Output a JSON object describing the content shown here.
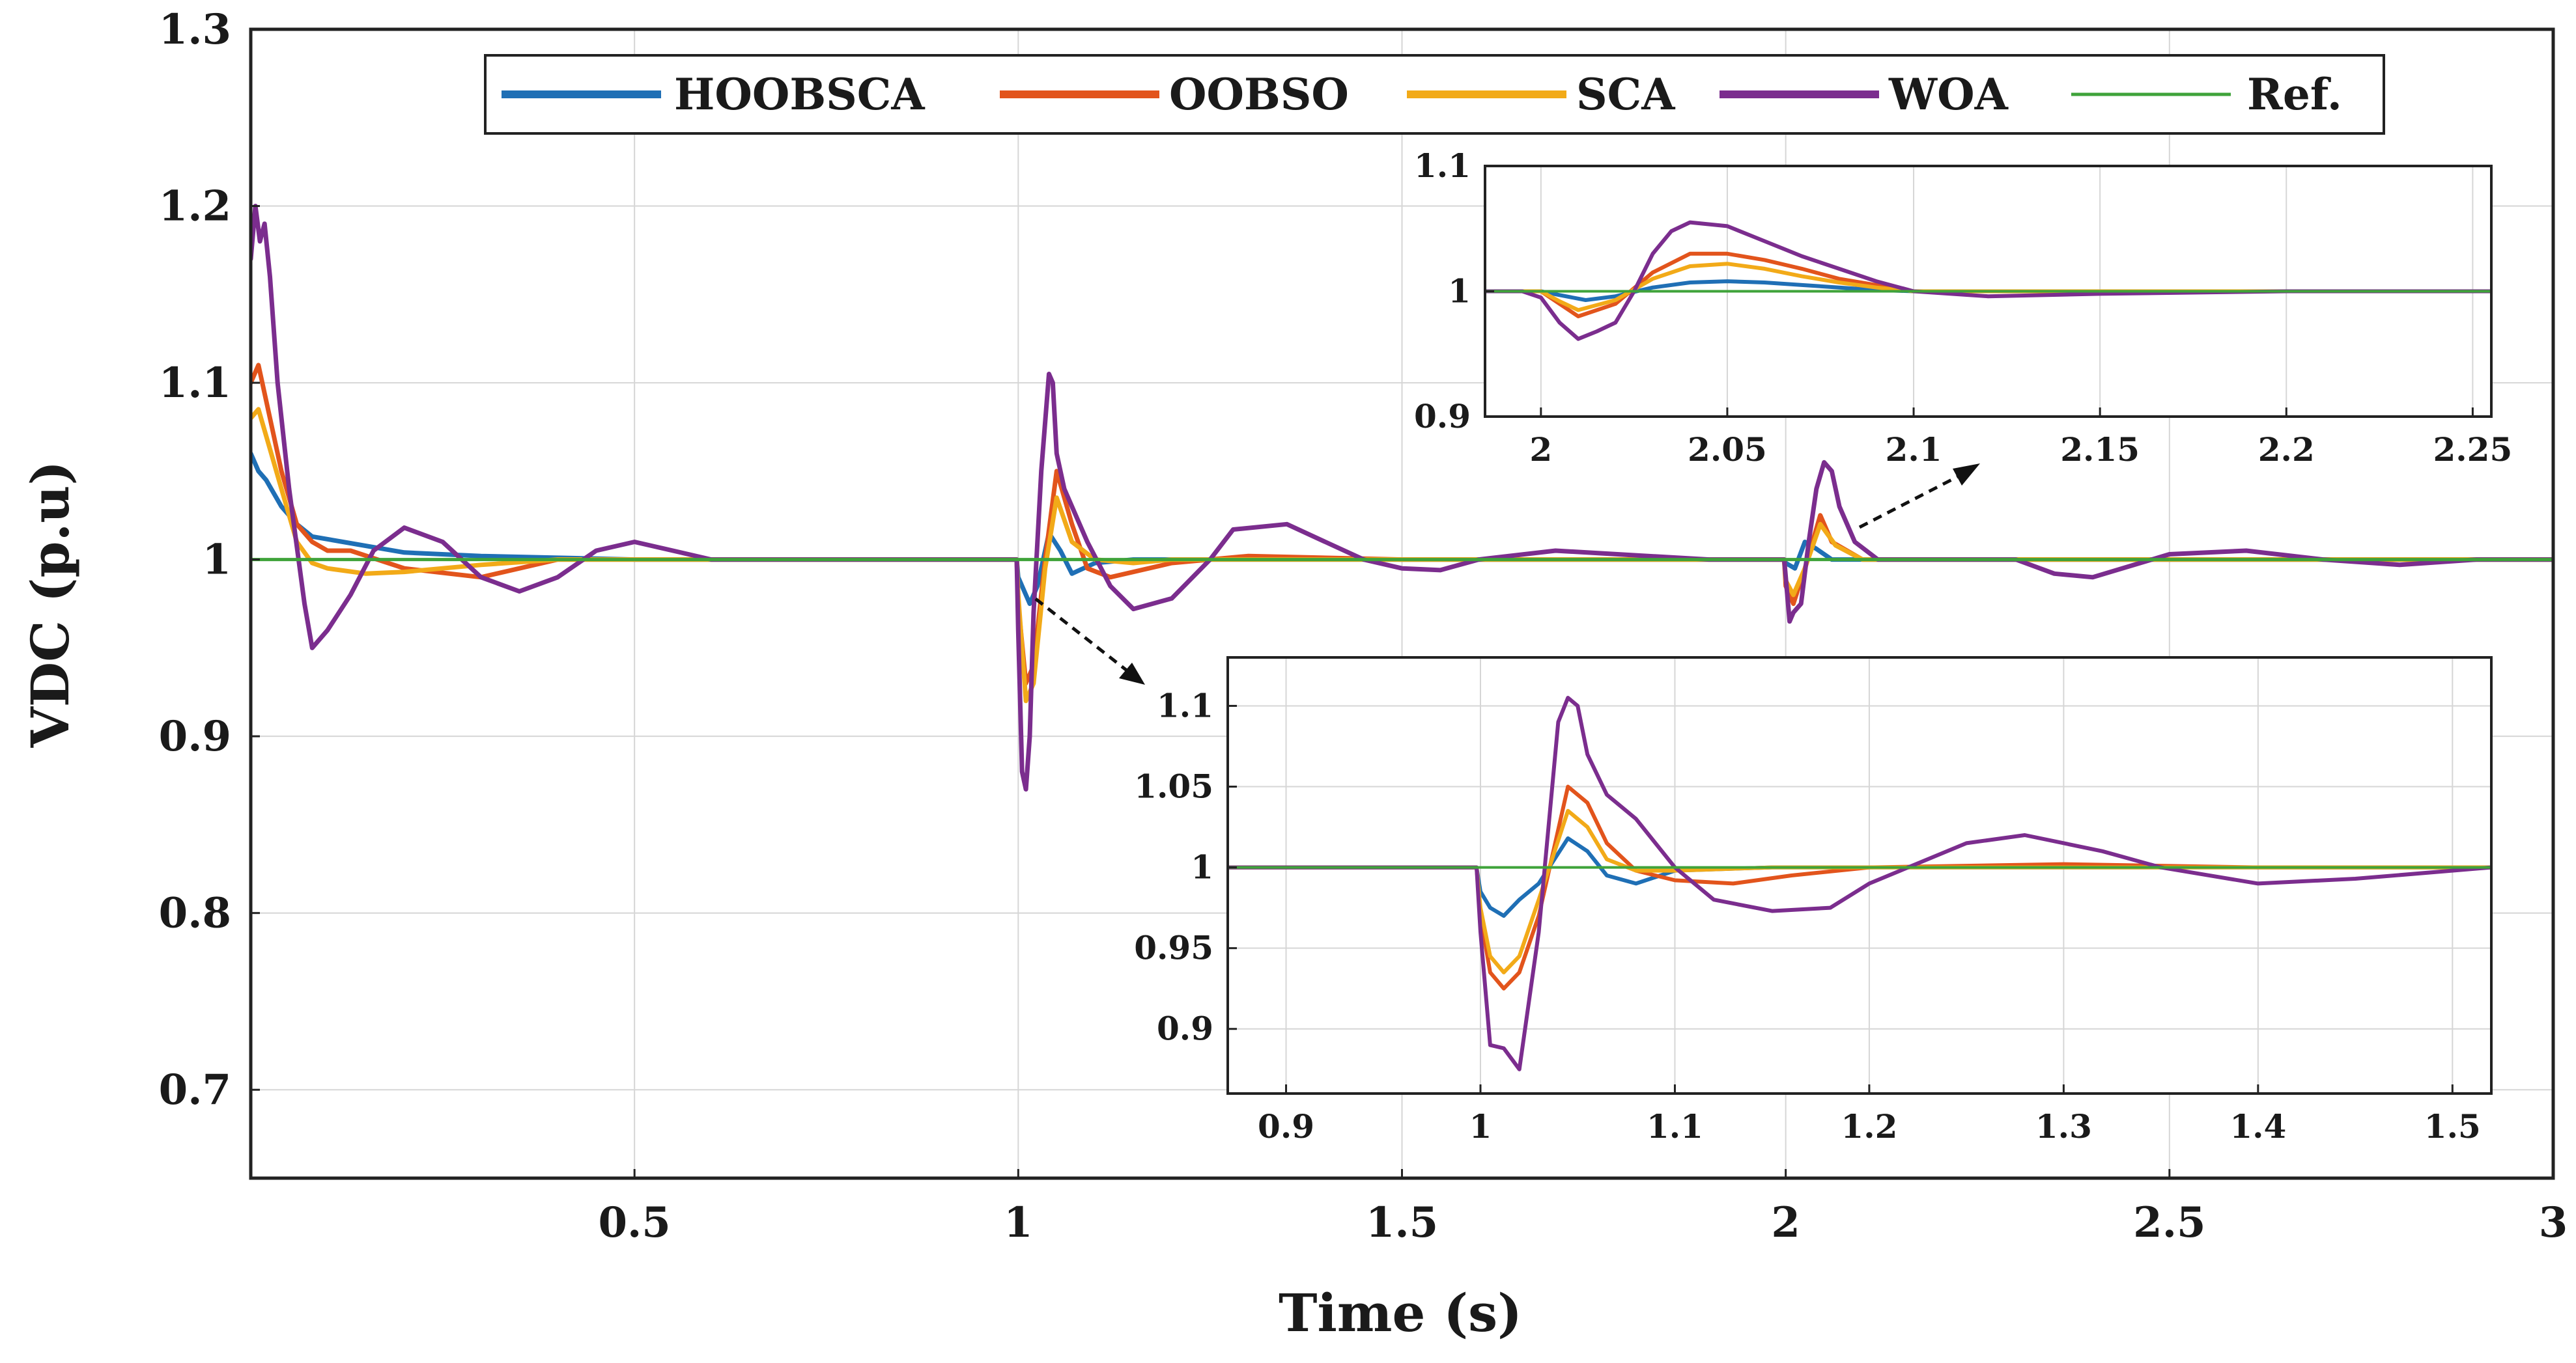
{
  "chart_data": [
    {
      "id": "main",
      "type": "line",
      "title": "",
      "xlabel": "Time (s)",
      "ylabel": "VDC (p.u)",
      "xlim": [
        0,
        3
      ],
      "ylim": [
        0.65,
        1.3
      ],
      "grid": true,
      "legend_position": "top",
      "xticks": [
        0.5,
        1,
        1.5,
        2,
        2.5,
        3
      ],
      "xtick_labels": [
        "0.5",
        "1",
        "1.5",
        "2",
        "2.5",
        "3"
      ],
      "yticks": [
        0.7,
        0.8,
        0.9,
        1,
        1.1,
        1.2,
        1.3
      ],
      "ytick_labels": [
        "0.7",
        "0.8",
        "0.9",
        "1",
        "1.1",
        "1.2",
        "1.3"
      ],
      "series": [
        {
          "name": "HOOBSCA",
          "color": "#1f6fb5",
          "x": [
            0,
            0.01,
            0.02,
            0.04,
            0.06,
            0.08,
            0.12,
            0.2,
            0.3,
            0.5,
            0.998,
            1.0,
            1.015,
            1.025,
            1.04,
            1.055,
            1.07,
            1.1,
            1.15,
            1.2,
            1.3,
            1.5,
            1.998,
            2.0,
            2.012,
            2.025,
            2.04,
            2.06,
            2.1,
            2.2,
            2.3,
            2.5,
            2.8,
            3.0
          ],
          "y": [
            1.06,
            1.05,
            1.045,
            1.03,
            1.02,
            1.013,
            1.01,
            1.004,
            1.002,
            1.0,
            1.0,
            0.99,
            0.975,
            0.985,
            1.015,
            1.005,
            0.992,
            0.998,
            1.0,
            1.0,
            1.0,
            1.0,
            1.0,
            0.998,
            0.995,
            1.01,
            1.006,
            1.0,
            1.0,
            1.0,
            1.0,
            1.0,
            1.0,
            1.0
          ]
        },
        {
          "name": "OOBSO",
          "color": "#e2541c",
          "x": [
            0,
            0.01,
            0.02,
            0.04,
            0.06,
            0.08,
            0.1,
            0.13,
            0.2,
            0.3,
            0.4,
            0.5,
            0.998,
            1.0,
            1.01,
            1.02,
            1.035,
            1.05,
            1.07,
            1.09,
            1.12,
            1.2,
            1.3,
            1.5,
            1.998,
            2.0,
            2.01,
            2.025,
            2.045,
            2.06,
            2.1,
            2.2,
            2.3,
            2.5,
            2.8,
            3.0
          ],
          "y": [
            1.1,
            1.11,
            1.09,
            1.05,
            1.02,
            1.01,
            1.005,
            1.005,
            0.995,
            0.99,
            1.0,
            1.0,
            1.0,
            0.975,
            0.93,
            0.94,
            1.0,
            1.05,
            1.02,
            0.995,
            0.99,
            0.998,
            1.002,
            1.0,
            1.0,
            0.985,
            0.975,
            0.995,
            1.025,
            1.01,
            1.0,
            1.0,
            1.0,
            1.0,
            1.0,
            1.0
          ]
        },
        {
          "name": "SCA",
          "color": "#f2aa18",
          "x": [
            0,
            0.01,
            0.02,
            0.04,
            0.06,
            0.08,
            0.1,
            0.15,
            0.2,
            0.3,
            0.4,
            0.5,
            0.998,
            1.0,
            1.01,
            1.02,
            1.035,
            1.05,
            1.07,
            1.1,
            1.15,
            1.2,
            1.3,
            1.5,
            1.998,
            2.0,
            2.01,
            2.025,
            2.045,
            2.065,
            2.1,
            2.2,
            2.3,
            2.5,
            2.8,
            3.0
          ],
          "y": [
            1.08,
            1.085,
            1.07,
            1.04,
            1.01,
            0.998,
            0.995,
            0.992,
            0.993,
            0.997,
            1.0,
            1.0,
            1.0,
            0.98,
            0.92,
            0.93,
            0.995,
            1.035,
            1.01,
            1.0,
            0.998,
            1.0,
            1.0,
            1.0,
            1.0,
            0.988,
            0.98,
            0.995,
            1.02,
            1.008,
            1.0,
            1.0,
            1.0,
            1.0,
            1.0,
            1.0
          ]
        },
        {
          "name": "WOA",
          "color": "#7b2d8e",
          "x": [
            0,
            0.006,
            0.012,
            0.018,
            0.025,
            0.035,
            0.05,
            0.07,
            0.08,
            0.1,
            0.13,
            0.16,
            0.2,
            0.25,
            0.3,
            0.35,
            0.4,
            0.45,
            0.5,
            0.55,
            0.6,
            0.7,
            0.9,
            0.998,
            1.0,
            1.005,
            1.01,
            1.015,
            1.02,
            1.03,
            1.04,
            1.045,
            1.05,
            1.06,
            1.07,
            1.09,
            1.12,
            1.15,
            1.2,
            1.25,
            1.28,
            1.35,
            1.4,
            1.45,
            1.5,
            1.55,
            1.6,
            1.7,
            1.9,
            1.998,
            2.0,
            2.005,
            2.01,
            2.02,
            2.03,
            2.04,
            2.05,
            2.06,
            2.07,
            2.09,
            2.12,
            2.2,
            2.3,
            2.35,
            2.4,
            2.5,
            2.6,
            2.7,
            2.8,
            2.9,
            3.0
          ],
          "y": [
            1.17,
            1.2,
            1.18,
            1.19,
            1.16,
            1.1,
            1.04,
            0.975,
            0.95,
            0.96,
            0.98,
            1.005,
            1.018,
            1.01,
            0.99,
            0.982,
            0.99,
            1.005,
            1.01,
            1.005,
            1.0,
            1.0,
            1.0,
            1.0,
            0.96,
            0.88,
            0.87,
            0.9,
            0.97,
            1.05,
            1.105,
            1.1,
            1.06,
            1.04,
            1.03,
            1.01,
            0.985,
            0.972,
            0.978,
            1.0,
            1.017,
            1.02,
            1.01,
            1.0,
            0.995,
            0.994,
            1.0,
            1.005,
            1.0,
            1.0,
            0.99,
            0.965,
            0.97,
            0.975,
            1.01,
            1.04,
            1.055,
            1.05,
            1.03,
            1.01,
            1.0,
            1.0,
            1.0,
            0.992,
            0.99,
            1.003,
            1.005,
            1.0,
            0.997,
            1.0,
            1.0
          ]
        },
        {
          "name": "Ref.",
          "color": "#3fa33a",
          "x": [
            0,
            3
          ],
          "y": [
            1.0,
            1.0
          ]
        }
      ]
    },
    {
      "id": "inset-top",
      "type": "line",
      "xlim": [
        1.985,
        2.255
      ],
      "ylim": [
        0.9,
        1.1
      ],
      "grid": true,
      "xticks": [
        2,
        2.05,
        2.1,
        2.15,
        2.2,
        2.25
      ],
      "xtick_labels": [
        "2",
        "2.05",
        "2.1",
        "2.15",
        "2.2",
        "2.25"
      ],
      "yticks": [
        0.9,
        1,
        1.1
      ],
      "ytick_labels": [
        "0.9",
        "1",
        "1.1"
      ],
      "series": [
        {
          "name": "HOOBSCA",
          "color": "#1f6fb5",
          "x": [
            1.985,
            2.0,
            2.005,
            2.012,
            2.02,
            2.03,
            2.04,
            2.05,
            2.06,
            2.07,
            2.08,
            2.09,
            2.1,
            2.15,
            2.2,
            2.255
          ],
          "y": [
            1.0,
            1.0,
            0.997,
            0.993,
            0.996,
            1.003,
            1.007,
            1.008,
            1.007,
            1.005,
            1.003,
            1.001,
            1.0,
            1.0,
            1.0,
            1.0
          ]
        },
        {
          "name": "OOBSO",
          "color": "#e2541c",
          "x": [
            1.985,
            2.0,
            2.005,
            2.01,
            2.02,
            2.03,
            2.04,
            2.05,
            2.06,
            2.07,
            2.08,
            2.09,
            2.1,
            2.15,
            2.2,
            2.255
          ],
          "y": [
            1.0,
            1.0,
            0.99,
            0.98,
            0.99,
            1.015,
            1.03,
            1.03,
            1.025,
            1.018,
            1.01,
            1.005,
            1.0,
            1.0,
            1.0,
            1.0
          ]
        },
        {
          "name": "SCA",
          "color": "#f2aa18",
          "x": [
            1.985,
            2.0,
            2.005,
            2.01,
            2.02,
            2.03,
            2.04,
            2.05,
            2.06,
            2.07,
            2.08,
            2.09,
            2.1,
            2.15,
            2.2,
            2.255
          ],
          "y": [
            1.0,
            1.0,
            0.992,
            0.985,
            0.993,
            1.01,
            1.02,
            1.022,
            1.018,
            1.012,
            1.007,
            1.003,
            1.0,
            1.0,
            1.0,
            1.0
          ]
        },
        {
          "name": "WOA",
          "color": "#7b2d8e",
          "x": [
            1.985,
            1.995,
            2.0,
            2.005,
            2.01,
            2.015,
            2.02,
            2.025,
            2.03,
            2.035,
            2.04,
            2.05,
            2.06,
            2.07,
            2.08,
            2.09,
            2.1,
            2.12,
            2.15,
            2.2,
            2.255
          ],
          "y": [
            1.0,
            1.0,
            0.995,
            0.975,
            0.962,
            0.968,
            0.975,
            1.0,
            1.03,
            1.048,
            1.055,
            1.052,
            1.04,
            1.028,
            1.018,
            1.008,
            1.0,
            0.996,
            0.998,
            1.0,
            1.0
          ]
        },
        {
          "name": "Ref.",
          "color": "#3fa33a",
          "x": [
            1.985,
            2.255
          ],
          "y": [
            1.0,
            1.0
          ]
        }
      ]
    },
    {
      "id": "inset-bottom",
      "type": "line",
      "xlim": [
        0.87,
        1.52
      ],
      "ylim": [
        0.86,
        1.13
      ],
      "grid": true,
      "xticks": [
        0.9,
        1,
        1.1,
        1.2,
        1.3,
        1.4,
        1.5
      ],
      "xtick_labels": [
        "0.9",
        "1",
        "1.1",
        "1.2",
        "1.3",
        "1.4",
        "1.5"
      ],
      "yticks": [
        0.9,
        0.95,
        1,
        1.05,
        1.1
      ],
      "ytick_labels": [
        "0.9",
        "0.95",
        "1",
        "1.05",
        "1.1"
      ],
      "series": [
        {
          "name": "HOOBSCA",
          "color": "#1f6fb5",
          "x": [
            0.87,
            0.998,
            1.0,
            1.005,
            1.012,
            1.02,
            1.03,
            1.045,
            1.055,
            1.065,
            1.08,
            1.1,
            1.15,
            1.2,
            1.3,
            1.4,
            1.52
          ],
          "y": [
            1.0,
            1.0,
            0.985,
            0.975,
            0.97,
            0.98,
            0.99,
            1.018,
            1.01,
            0.995,
            0.99,
            0.998,
            1.0,
            1.0,
            1.0,
            1.0,
            1.0
          ]
        },
        {
          "name": "OOBSO",
          "color": "#e2541c",
          "x": [
            0.87,
            0.998,
            1.0,
            1.005,
            1.012,
            1.02,
            1.03,
            1.045,
            1.055,
            1.065,
            1.08,
            1.1,
            1.13,
            1.16,
            1.2,
            1.3,
            1.4,
            1.52
          ],
          "y": [
            1.0,
            1.0,
            0.97,
            0.935,
            0.925,
            0.935,
            0.97,
            1.05,
            1.04,
            1.015,
            0.998,
            0.992,
            0.99,
            0.995,
            1.0,
            1.002,
            1.0,
            1.0
          ]
        },
        {
          "name": "SCA",
          "color": "#f2aa18",
          "x": [
            0.87,
            0.998,
            1.0,
            1.005,
            1.012,
            1.02,
            1.03,
            1.045,
            1.055,
            1.065,
            1.08,
            1.1,
            1.15,
            1.2,
            1.3,
            1.4,
            1.52
          ],
          "y": [
            1.0,
            1.0,
            0.975,
            0.945,
            0.935,
            0.945,
            0.98,
            1.035,
            1.025,
            1.005,
            0.998,
            0.998,
            1.0,
            1.0,
            1.0,
            1.0,
            1.0
          ]
        },
        {
          "name": "WOA",
          "color": "#7b2d8e",
          "x": [
            0.87,
            0.998,
            1.0,
            1.005,
            1.012,
            1.02,
            1.03,
            1.04,
            1.045,
            1.05,
            1.055,
            1.065,
            1.08,
            1.1,
            1.12,
            1.15,
            1.18,
            1.2,
            1.25,
            1.28,
            1.32,
            1.35,
            1.4,
            1.45,
            1.52
          ],
          "y": [
            1.0,
            1.0,
            0.96,
            0.89,
            0.888,
            0.875,
            0.96,
            1.09,
            1.105,
            1.1,
            1.07,
            1.045,
            1.03,
            1.0,
            0.98,
            0.973,
            0.975,
            0.99,
            1.015,
            1.02,
            1.01,
            1.0,
            0.99,
            0.993,
            1.0
          ]
        },
        {
          "name": "Ref.",
          "color": "#3fa33a",
          "x": [
            0.87,
            1.52
          ],
          "y": [
            1.0,
            1.0
          ]
        }
      ]
    }
  ]
}
